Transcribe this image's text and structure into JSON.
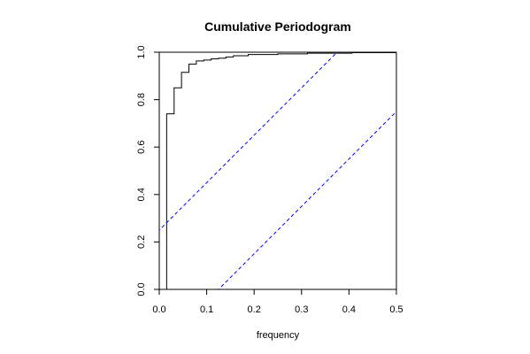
{
  "chart_data": {
    "type": "line",
    "title": "Cumulative Periodogram",
    "xlabel": "frequency",
    "ylabel": "",
    "xlim": [
      0,
      0.5
    ],
    "ylim": [
      0,
      1
    ],
    "x_ticks": [
      0.0,
      0.1,
      0.2,
      0.3,
      0.4,
      0.5
    ],
    "x_tick_labels": [
      "0.0",
      "0.1",
      "0.2",
      "0.3",
      "0.4",
      "0.5"
    ],
    "y_ticks": [
      0.0,
      0.2,
      0.4,
      0.6,
      0.8,
      1.0
    ],
    "y_tick_labels": [
      "0.0",
      "0.2",
      "0.4",
      "0.6",
      "0.8",
      "1.0"
    ],
    "grid": false,
    "series": [
      {
        "style": "step",
        "color": "#000000",
        "x": [
          0.0156,
          0.0313,
          0.0469,
          0.0625,
          0.0781,
          0.0938,
          0.1094,
          0.125,
          0.1406,
          0.1563,
          0.1875,
          0.25,
          0.3125,
          0.4063,
          0.5
        ],
        "y": [
          0.74,
          0.85,
          0.915,
          0.95,
          0.963,
          0.967,
          0.972,
          0.975,
          0.98,
          0.985,
          0.99,
          0.993,
          0.996,
          0.998,
          1.0
        ]
      },
      {
        "style": "dashed",
        "color": "#0000ff",
        "x": [
          0.0,
          0.375
        ],
        "y": [
          0.25,
          1.0
        ]
      },
      {
        "style": "dashed",
        "color": "#0000ff",
        "x": [
          0.125,
          0.5
        ],
        "y": [
          0.0,
          0.75
        ]
      }
    ]
  }
}
